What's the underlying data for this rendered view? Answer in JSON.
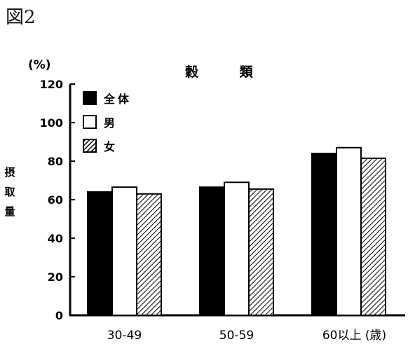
{
  "figure_label": "図2",
  "chart_data": {
    "type": "bar",
    "title": "穀 類",
    "unit_label": "(%)",
    "ylabel": "摂取量",
    "xlabel": "",
    "categories": [
      "30-49",
      "50-59",
      "60以上 (歳)"
    ],
    "series": [
      {
        "name": "全体",
        "values": [
          64,
          66.5,
          84
        ]
      },
      {
        "name": "男",
        "values": [
          66.5,
          69,
          87
        ]
      },
      {
        "name": "女",
        "values": [
          63,
          65.5,
          81.5
        ]
      }
    ],
    "ylim": [
      0,
      120
    ],
    "yticks": [
      0,
      20,
      40,
      60,
      80,
      100,
      120
    ],
    "grid": false,
    "legend_position": "top-left"
  },
  "styles": {
    "series_fills": [
      "solid-black",
      "white",
      "hatched"
    ],
    "ink_color": "#000000",
    "background": "#ffffff"
  }
}
